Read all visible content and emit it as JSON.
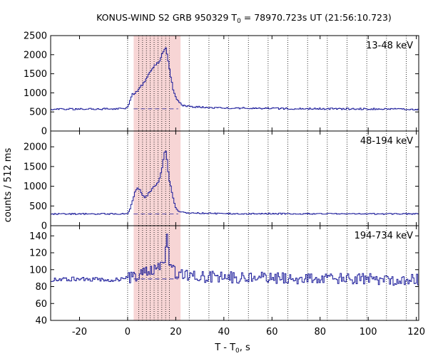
{
  "chart_data": {
    "type": "line",
    "title": "KONUS-WIND S2 GRB 950329 T",
    "title_sub": "0",
    "title_rest": " = 78970.723s UT (21:56:10.723)",
    "xlabel": "T - T",
    "xlabel_sub": "0",
    "xlabel_rest": ", s",
    "ylabel": "counts / 512 ms",
    "xlim": [
      -32,
      121
    ],
    "xticks": [
      -20,
      0,
      20,
      40,
      60,
      80,
      100,
      120
    ],
    "xtick_labels": [
      "-20",
      "0",
      "20",
      "40",
      "60",
      "80",
      "100",
      "120"
    ],
    "shaded_interval": [
      2.5,
      22.0
    ],
    "vertical_dotted_lines_s": [
      0,
      4.6,
      6.2,
      7.8,
      9.4,
      11.0,
      12.6,
      14.2,
      15.8,
      17.4,
      25.6,
      33.8,
      42.0,
      50.2,
      58.4,
      66.6,
      74.8,
      83.0,
      91.2,
      99.4,
      107.6,
      115.8
    ],
    "colors": {
      "series": "#1a1a9a",
      "shade": "#f7d5d5",
      "dotted": "#000000"
    },
    "panels": [
      {
        "energy_label": "13-48 keV",
        "ylim": [
          0,
          2500
        ],
        "yticks": [
          0,
          500,
          1000,
          1500,
          2000,
          2500
        ],
        "ytick_labels": [
          "0",
          "500",
          "1000",
          "1500",
          "2000",
          "2500"
        ],
        "background_level": 580,
        "series_points": [
          [
            -32,
            570
          ],
          [
            -10,
            580
          ],
          [
            -1,
            590
          ],
          [
            0,
            640
          ],
          [
            1.5,
            950
          ],
          [
            3,
            1000
          ],
          [
            5,
            1150
          ],
          [
            7,
            1300
          ],
          [
            9,
            1550
          ],
          [
            11,
            1750
          ],
          [
            12.5,
            1800
          ],
          [
            13.5,
            1900
          ],
          [
            14.5,
            2100
          ],
          [
            15.5,
            2200
          ],
          [
            16.5,
            1900
          ],
          [
            17.5,
            1500
          ],
          [
            18.5,
            1150
          ],
          [
            19.5,
            900
          ],
          [
            21,
            750
          ],
          [
            23,
            660
          ],
          [
            26,
            640
          ],
          [
            35,
            610
          ],
          [
            60,
            590
          ],
          [
            90,
            580
          ],
          [
            121,
            570
          ]
        ]
      },
      {
        "energy_label": "48-194 keV",
        "ylim": [
          0,
          2400
        ],
        "yticks": [
          0,
          500,
          1000,
          1500,
          2000
        ],
        "ytick_labels": [
          "0",
          "500",
          "1000",
          "1500",
          "2000"
        ],
        "background_level": 300,
        "series_points": [
          [
            -32,
            300
          ],
          [
            -1,
            300
          ],
          [
            0,
            320
          ],
          [
            1.5,
            550
          ],
          [
            2.5,
            800
          ],
          [
            3.5,
            950
          ],
          [
            5,
            900
          ],
          [
            6,
            780
          ],
          [
            7,
            700
          ],
          [
            8,
            780
          ],
          [
            9.5,
            900
          ],
          [
            10.5,
            1000
          ],
          [
            11.5,
            1050
          ],
          [
            12.5,
            1100
          ],
          [
            13.5,
            1300
          ],
          [
            14.5,
            1650
          ],
          [
            15.5,
            1950
          ],
          [
            16,
            1750
          ],
          [
            17,
            1200
          ],
          [
            18,
            900
          ],
          [
            19,
            600
          ],
          [
            20,
            420
          ],
          [
            22,
            340
          ],
          [
            26,
            320
          ],
          [
            40,
            305
          ],
          [
            121,
            300
          ]
        ]
      },
      {
        "energy_label": "194-734 keV",
        "ylim": [
          40,
          152
        ],
        "yticks": [
          40,
          60,
          80,
          100,
          120,
          140
        ],
        "ytick_labels": [
          "40",
          "60",
          "80",
          "100",
          "120",
          "140"
        ],
        "background_level": 89,
        "series_points": [
          [
            -32,
            88
          ],
          [
            -20,
            89
          ],
          [
            -5,
            88
          ],
          [
            0,
            90
          ],
          [
            5,
            95
          ],
          [
            10,
            98
          ],
          [
            15,
            110
          ],
          [
            16,
            142
          ],
          [
            17,
            112
          ],
          [
            20,
            95
          ],
          [
            30,
            92
          ],
          [
            60,
            90
          ],
          [
            90,
            89
          ],
          [
            121,
            88
          ]
        ]
      }
    ]
  }
}
